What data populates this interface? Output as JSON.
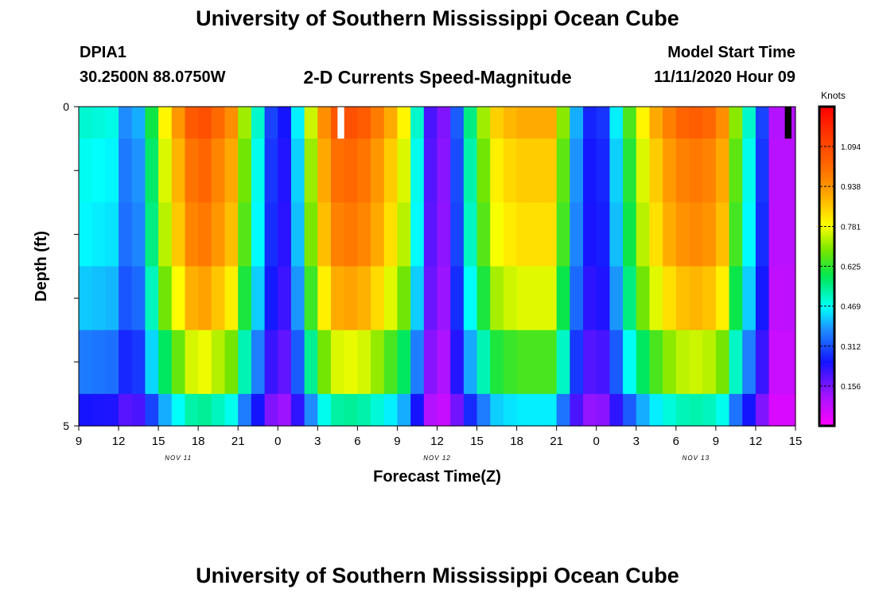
{
  "header": {
    "title": "University of Southern Mississippi Ocean Cube",
    "station": "DPIA1",
    "coords": "30.2500N 88.0750W",
    "subtitle": "2-D Currents Speed-Magnitude",
    "model_start_label": "Model Start Time",
    "model_start_value": "11/11/2020 Hour 09"
  },
  "footer": {
    "title": "University of Southern Mississippi Ocean Cube"
  },
  "chart_data": {
    "type": "heatmap",
    "title": "2-D Currents Speed-Magnitude",
    "xlabel": "Forecast Time(Z)",
    "ylabel": "Depth (ft)",
    "xlim": [
      0,
      54
    ],
    "ylim": [
      0,
      5
    ],
    "y_ticks": [
      {
        "v": 0,
        "label": "0"
      },
      {
        "v": 1,
        "label": ""
      },
      {
        "v": 2,
        "label": ""
      },
      {
        "v": 3,
        "label": ""
      },
      {
        "v": 4,
        "label": ""
      },
      {
        "v": 5,
        "label": "5"
      }
    ],
    "x_ticks": [
      {
        "h": 0,
        "label": "9"
      },
      {
        "h": 3,
        "label": "12"
      },
      {
        "h": 6,
        "label": "15"
      },
      {
        "h": 9,
        "label": "18"
      },
      {
        "h": 12,
        "label": "21"
      },
      {
        "h": 15,
        "label": "0"
      },
      {
        "h": 18,
        "label": "3"
      },
      {
        "h": 21,
        "label": "6"
      },
      {
        "h": 24,
        "label": "9"
      },
      {
        "h": 27,
        "label": "12"
      },
      {
        "h": 30,
        "label": "15"
      },
      {
        "h": 33,
        "label": "18"
      },
      {
        "h": 36,
        "label": "21"
      },
      {
        "h": 39,
        "label": "0"
      },
      {
        "h": 42,
        "label": "3"
      },
      {
        "h": 45,
        "label": "6"
      },
      {
        "h": 48,
        "label": "9"
      },
      {
        "h": 51,
        "label": "12"
      },
      {
        "h": 54,
        "label": "15"
      }
    ],
    "date_labels": [
      {
        "h": 7.5,
        "label": "NOV 11"
      },
      {
        "h": 27,
        "label": "NOV 12"
      },
      {
        "h": 46.5,
        "label": "NOV 13"
      }
    ],
    "colorbar": {
      "label": "Knots",
      "min": 0,
      "max": 1.25,
      "ticks": [
        0.156,
        0.312,
        0.469,
        0.625,
        0.781,
        0.938,
        1.094
      ],
      "tick_labels": [
        "0.156",
        "0.312",
        "0.469",
        "0.625",
        "0.781",
        "0.938",
        "1.094"
      ]
    },
    "depth_layers": [
      0,
      1,
      2,
      3,
      4,
      5
    ],
    "speed_profile_knots": [
      {
        "h": 0,
        "v": 0.5
      },
      {
        "h": 2.5,
        "v": 0.48
      },
      {
        "h": 3,
        "v": 0.45
      },
      {
        "h": 4,
        "v": 0.3
      },
      {
        "h": 5.5,
        "v": 0.6
      },
      {
        "h": 6.5,
        "v": 0.8
      },
      {
        "h": 8,
        "v": 1.0
      },
      {
        "h": 9,
        "v": 1.1
      },
      {
        "h": 10,
        "v": 1.05
      },
      {
        "h": 11.5,
        "v": 0.95
      },
      {
        "h": 13,
        "v": 0.6
      },
      {
        "h": 14.5,
        "v": 0.3
      },
      {
        "h": 15.5,
        "v": 0.25
      },
      {
        "h": 16.5,
        "v": 0.45
      },
      {
        "h": 17.5,
        "v": 0.75
      },
      {
        "h": 19,
        "v": 1.05
      },
      {
        "h": 21,
        "v": 1.08
      },
      {
        "h": 23,
        "v": 0.95
      },
      {
        "h": 24.5,
        "v": 0.8
      },
      {
        "h": 25.5,
        "v": 0.5
      },
      {
        "h": 26.5,
        "v": 0.2
      },
      {
        "h": 27,
        "v": 0.1
      },
      {
        "h": 28,
        "v": 0.2
      },
      {
        "h": 29,
        "v": 0.45
      },
      {
        "h": 30,
        "v": 0.65
      },
      {
        "h": 31.5,
        "v": 0.85
      },
      {
        "h": 33,
        "v": 0.9
      },
      {
        "h": 35.5,
        "v": 0.9
      },
      {
        "h": 36.5,
        "v": 0.7
      },
      {
        "h": 37.5,
        "v": 0.4
      },
      {
        "h": 39,
        "v": 0.2
      },
      {
        "h": 40.5,
        "v": 0.45
      },
      {
        "h": 42,
        "v": 0.75
      },
      {
        "h": 44,
        "v": 0.95
      },
      {
        "h": 46,
        "v": 1.05
      },
      {
        "h": 47.5,
        "v": 1.02
      },
      {
        "h": 48.5,
        "v": 0.95
      },
      {
        "h": 49.5,
        "v": 0.7
      },
      {
        "h": 50.5,
        "v": 0.5
      },
      {
        "h": 51.5,
        "v": 0.3
      },
      {
        "h": 52.5,
        "v": 0.1
      },
      {
        "h": 54,
        "v": 0.1
      }
    ],
    "depth_factors": [
      1.0,
      0.95,
      0.92,
      0.85,
      0.72,
      0.5
    ],
    "missing_markers": [
      {
        "h": 19.5,
        "h_end": 20.0,
        "depth_from": 0,
        "depth_to": 0.5,
        "color": "#ffffff"
      },
      {
        "h": 53.2,
        "h_end": 53.7,
        "depth_from": 0,
        "depth_to": 0.5,
        "color": "#000000"
      }
    ]
  }
}
